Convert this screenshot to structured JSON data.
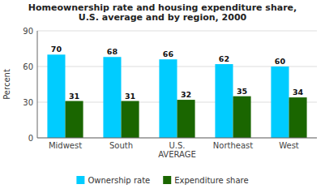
{
  "chart_data": {
    "type": "bar",
    "title": "Homeownership rate and housing expenditure share,\nU.S. average and by region, 2000",
    "categories": [
      "Midwest",
      "South",
      "U.S.\nAVERAGE",
      "Northeast",
      "West"
    ],
    "series": [
      {
        "name": "Ownership rate",
        "color": "#00CCFF",
        "values": [
          70,
          68,
          66,
          62,
          60
        ]
      },
      {
        "name": "Expenditure share",
        "color": "#1a6600",
        "values": [
          31,
          31,
          32,
          35,
          34
        ]
      }
    ],
    "y_label": "Percent",
    "ylim": [
      0,
      90
    ],
    "yticks": [
      0,
      30,
      60,
      90
    ],
    "grid": true,
    "data_labels": true,
    "legend": "bottom"
  }
}
